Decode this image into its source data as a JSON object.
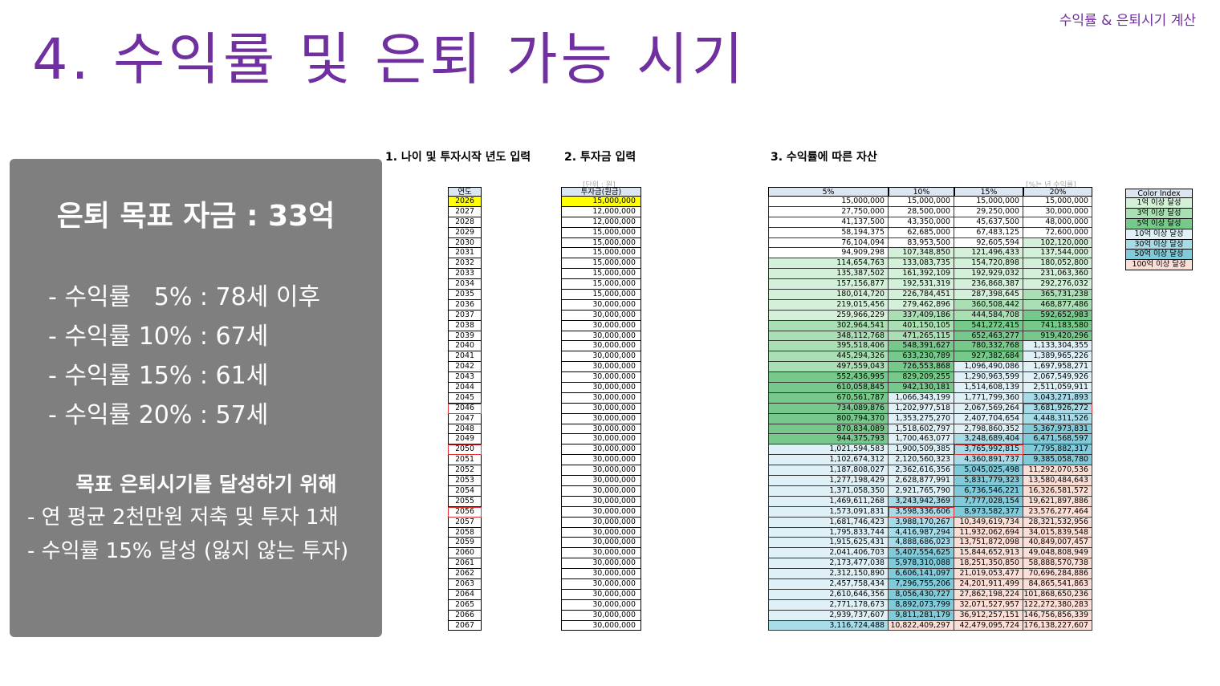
{
  "header": {
    "title": "4. 수익률 및 은퇴 가능 시기",
    "corner_label": "수익률 & 은퇴시기 계산"
  },
  "panel": {
    "goal": "은퇴 목표 자금 : 33억",
    "results": [
      "- 수익률   5% : 78세 이후",
      "- 수익률 10% : 67세",
      "- 수익률 15% : 61세",
      "- 수익률 20% : 57세"
    ],
    "how_title": "목표 은퇴시기를 달성하기 위해",
    "how_items": [
      "- 연 평균 2천만원 저축 및 투자 1채",
      "- 수익률 15% 달성 (잃지 않는 투자)"
    ]
  },
  "sections": {
    "s1": "1. 나이 및 투자시작 년도 입력",
    "s2": "2. 투자금 입력",
    "s3": "3. 수익률에 따른 자산",
    "unit_note": "[단위 : 원]",
    "rate_note": "[%는 년 수익률]"
  },
  "years_header": "연도",
  "invest_header": "투자금(원금)",
  "years": [
    "2026",
    "2027",
    "2028",
    "2029",
    "2030",
    "2031",
    "2032",
    "2033",
    "2034",
    "2035",
    "2036",
    "2037",
    "2038",
    "2039",
    "2040",
    "2041",
    "2042",
    "2043",
    "2044",
    "2045",
    "2046",
    "2047",
    "2048",
    "2049",
    "2050",
    "2051",
    "2052",
    "2053",
    "2054",
    "2055",
    "2056",
    "2057",
    "2058",
    "2059",
    "2060",
    "2061",
    "2062",
    "2063",
    "2064",
    "2065",
    "2066",
    "2067"
  ],
  "investments": [
    "15,000,000",
    "12,000,000",
    "12,000,000",
    "15,000,000",
    "15,000,000",
    "15,000,000",
    "15,000,000",
    "15,000,000",
    "15,000,000",
    "15,000,000",
    "30,000,000",
    "30,000,000",
    "30,000,000",
    "30,000,000",
    "30,000,000",
    "30,000,000",
    "30,000,000",
    "30,000,000",
    "30,000,000",
    "30,000,000",
    "30,000,000",
    "30,000,000",
    "30,000,000",
    "30,000,000",
    "30,000,000",
    "30,000,000",
    "30,000,000",
    "30,000,000",
    "30,000,000",
    "30,000,000",
    "30,000,000",
    "30,000,000",
    "30,000,000",
    "30,000,000",
    "30,000,000",
    "30,000,000",
    "30,000,000",
    "30,000,000",
    "30,000,000",
    "30,000,000",
    "30,000,000",
    "30,000,000"
  ],
  "marked_years": [
    "2046",
    "2050",
    "2056"
  ],
  "return_headers": [
    "5%",
    "10%",
    "15%",
    "20%"
  ],
  "returns": [
    [
      "15,000,000",
      "15,000,000",
      "15,000,000",
      "15,000,000"
    ],
    [
      "27,750,000",
      "28,500,000",
      "29,250,000",
      "30,000,000"
    ],
    [
      "41,137,500",
      "43,350,000",
      "45,637,500",
      "48,000,000"
    ],
    [
      "58,194,375",
      "62,685,000",
      "67,483,125",
      "72,600,000"
    ],
    [
      "76,104,094",
      "83,953,500",
      "92,605,594",
      "102,120,000"
    ],
    [
      "94,909,298",
      "107,348,850",
      "121,496,433",
      "137,544,000"
    ],
    [
      "114,654,763",
      "133,083,735",
      "154,720,898",
      "180,052,800"
    ],
    [
      "135,387,502",
      "161,392,109",
      "192,929,032",
      "231,063,360"
    ],
    [
      "157,156,877",
      "192,531,319",
      "236,868,387",
      "292,276,032"
    ],
    [
      "180,014,720",
      "226,784,451",
      "287,398,645",
      "365,731,238"
    ],
    [
      "219,015,456",
      "279,462,896",
      "360,508,442",
      "468,877,486"
    ],
    [
      "259,966,229",
      "337,409,186",
      "444,584,708",
      "592,652,983"
    ],
    [
      "302,964,541",
      "401,150,105",
      "541,272,415",
      "741,183,580"
    ],
    [
      "348,112,768",
      "471,265,115",
      "652,463,277",
      "919,420,296"
    ],
    [
      "395,518,406",
      "548,391,627",
      "780,332,768",
      "1,133,304,355"
    ],
    [
      "445,294,326",
      "633,230,789",
      "927,382,684",
      "1,389,965,226"
    ],
    [
      "497,559,043",
      "726,553,868",
      "1,096,490,086",
      "1,697,958,271"
    ],
    [
      "552,436,995",
      "829,209,255",
      "1,290,963,599",
      "2,067,549,926"
    ],
    [
      "610,058,845",
      "942,130,181",
      "1,514,608,139",
      "2,511,059,911"
    ],
    [
      "670,561,787",
      "1,066,343,199",
      "1,771,799,360",
      "3,043,271,893"
    ],
    [
      "734,089,876",
      "1,202,977,518",
      "2,067,569,264",
      "3,681,926,272"
    ],
    [
      "800,794,370",
      "1,353,275,270",
      "2,407,704,654",
      "4,448,311,526"
    ],
    [
      "870,834,089",
      "1,518,602,797",
      "2,798,860,352",
      "5,367,973,831"
    ],
    [
      "944,375,793",
      "1,700,463,077",
      "3,248,689,404",
      "6,471,568,597"
    ],
    [
      "1,021,594,583",
      "1,900,509,385",
      "3,765,992,815",
      "7,795,882,317"
    ],
    [
      "1,102,674,312",
      "2,120,560,323",
      "4,360,891,737",
      "9,385,058,780"
    ],
    [
      "1,187,808,027",
      "2,362,616,356",
      "5,045,025,498",
      "11,292,070,536"
    ],
    [
      "1,277,198,429",
      "2,628,877,991",
      "5,831,779,323",
      "13,580,484,643"
    ],
    [
      "1,371,058,350",
      "2,921,765,790",
      "6,736,546,221",
      "16,326,581,572"
    ],
    [
      "1,469,611,268",
      "3,243,942,369",
      "7,777,028,154",
      "19,621,897,886"
    ],
    [
      "1,573,091,831",
      "3,598,336,606",
      "8,973,582,377",
      "23,576,277,464"
    ],
    [
      "1,681,746,423",
      "3,988,170,267",
      "10,349,619,734",
      "28,321,532,956"
    ],
    [
      "1,795,833,744",
      "4,416,987,294",
      "11,932,062,694",
      "34,015,839,548"
    ],
    [
      "1,915,625,431",
      "4,888,686,023",
      "13,751,872,098",
      "40,849,007,457"
    ],
    [
      "2,041,406,703",
      "5,407,554,625",
      "15,844,652,913",
      "49,048,808,949"
    ],
    [
      "2,173,477,038",
      "5,978,310,088",
      "18,251,350,850",
      "58,888,570,738"
    ],
    [
      "2,312,150,890",
      "6,606,141,097",
      "21,019,053,477",
      "70,696,284,886"
    ],
    [
      "2,457,758,434",
      "7,296,755,206",
      "24,201,911,499",
      "84,865,541,863"
    ],
    [
      "2,610,646,356",
      "8,056,430,727",
      "27,862,198,224",
      "101,868,650,236"
    ],
    [
      "2,771,178,673",
      "8,892,073,799",
      "32,071,527,957",
      "122,272,380,283"
    ],
    [
      "2,939,737,607",
      "9,811,281,179",
      "36,912,257,151",
      "146,756,856,339"
    ],
    [
      "3,116,724,488",
      "10,822,409,297",
      "42,479,095,724",
      "176,138,227,607"
    ]
  ],
  "marked_cells": [
    {
      "row": 20,
      "col": 3
    },
    {
      "row": 24,
      "col": 2
    },
    {
      "row": 30,
      "col": 1
    }
  ],
  "legend": {
    "title": "Color Index",
    "items": [
      {
        "label": "1억 이상 달성",
        "color": "#d4f0d8"
      },
      {
        "label": "3억 이상 달성",
        "color": "#a9dfb2"
      },
      {
        "label": "5억 이상 달성",
        "color": "#76c98a"
      },
      {
        "label": "10억 이상 달성",
        "color": "#dff1f6"
      },
      {
        "label": "30억 이상 달성",
        "color": "#a7dbe8"
      },
      {
        "label": "50억 이상 달성",
        "color": "#80cad9"
      },
      {
        "label": "100억 이상 달성",
        "color": "#fbded6"
      }
    ]
  }
}
